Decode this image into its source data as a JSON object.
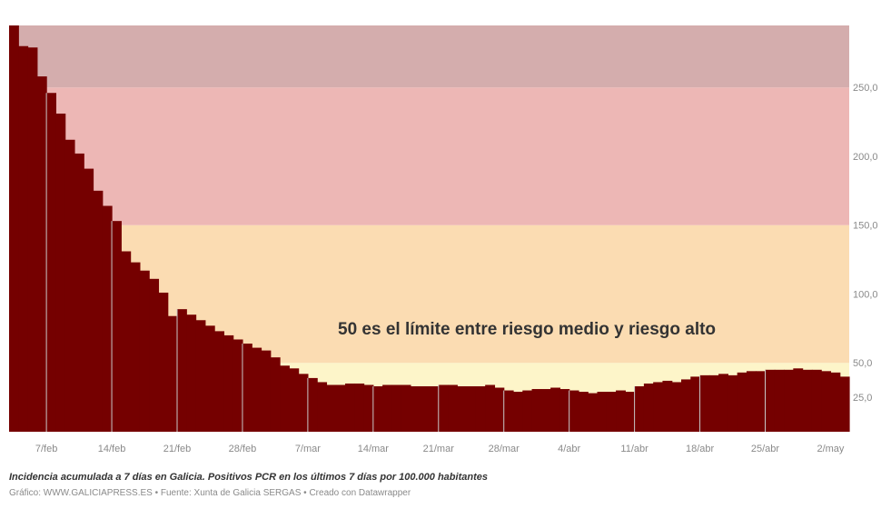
{
  "chart_data": {
    "type": "bar",
    "annotation": "50 es el límite entre riesgo medio y riesgo alto",
    "x_tick_labels": [
      "7/feb",
      "14/feb",
      "21/feb",
      "28/feb",
      "7/mar",
      "14/mar",
      "21/mar",
      "28/mar",
      "4/abr",
      "11/abr",
      "18/abr",
      "25/abr",
      "2/may"
    ],
    "y_tick_labels": [
      "25,0",
      "50,0",
      "100,0",
      "150,0",
      "200,0",
      "250,0"
    ],
    "ylim": [
      0,
      295
    ],
    "bands": [
      {
        "from": 0,
        "to": 50,
        "color": "#fdf5c9"
      },
      {
        "from": 50,
        "to": 150,
        "color": "#fbdcb2"
      },
      {
        "from": 150,
        "to": 250,
        "color": "#edb7b5"
      },
      {
        "from": 250,
        "to": 295,
        "color": "#d4adad"
      }
    ],
    "bar_color": "#750000",
    "separator_color": "#c8c8c8",
    "tick_index": [
      4,
      11,
      18,
      25,
      32,
      39,
      46,
      53,
      60,
      67,
      74,
      81,
      88
    ],
    "values": [
      295,
      280,
      279,
      258,
      246,
      231,
      212,
      202,
      191,
      175,
      164,
      153,
      131,
      123,
      117,
      111,
      101,
      84,
      89,
      85,
      81,
      77,
      73,
      70,
      67,
      64,
      61,
      59,
      54,
      48,
      46,
      42,
      39,
      36,
      34,
      34,
      35,
      35,
      34,
      33,
      34,
      34,
      34,
      33,
      33,
      33,
      34,
      34,
      33,
      33,
      33,
      34,
      32,
      30,
      29,
      30,
      31,
      31,
      32,
      31,
      30,
      29,
      28,
      29,
      29,
      30,
      29,
      33,
      35,
      36,
      37,
      36,
      38,
      40,
      41,
      41,
      42,
      41,
      43,
      44,
      44,
      45,
      45,
      45,
      46,
      45,
      45,
      44,
      43,
      40
    ],
    "title": "",
    "xlabel": "",
    "ylabel": ""
  },
  "caption": "Incidencia acumulada a 7 días en Galicia. Positivos PCR en los últimos 7 días por 100.000 habitantes",
  "credit": "Gráfico: WWW.GALICIAPRESS.ES • Fuente: Xunta de Galicia SERGAS • Creado con Datawrapper"
}
